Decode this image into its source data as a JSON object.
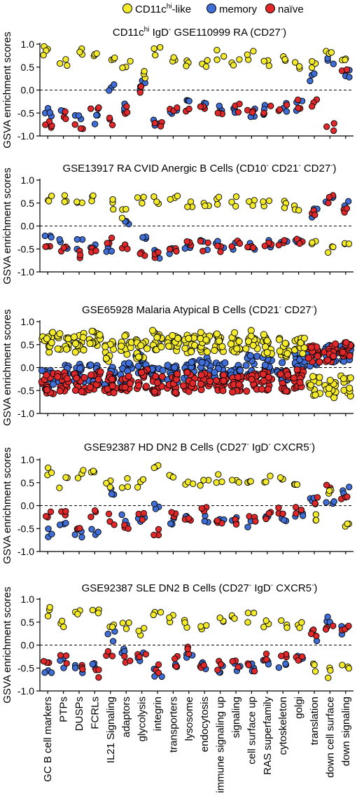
{
  "legend": [
    {
      "label": "CD11c",
      "sup": "hi",
      "tail": "-like",
      "color": "#f2ea2a"
    },
    {
      "label": "memory",
      "sup": "",
      "tail": "",
      "color": "#3f6fd6"
    },
    {
      "label": "naïve",
      "sup": "",
      "tail": "",
      "color": "#e0282a"
    }
  ],
  "categories": [
    "GC B cell markers",
    "PTPs",
    "DUSPs",
    "FCRLs",
    "IL21 Signaling",
    "adaptors",
    "glycolysis",
    "integrin",
    "transporters",
    "lysosome",
    "endocytosis",
    "immune signaling up",
    "signaling",
    "cell surface up",
    "RAS superfamily",
    "cytoskeleton",
    "golgi",
    "translation",
    "down cell surface",
    "down signaling"
  ],
  "ylabel": "GSVA enrichment scores",
  "yticks": [
    "1.0",
    "0.5",
    "0.0",
    "-0.5",
    "-1.0"
  ],
  "chart_data": [
    {
      "type": "scatter",
      "title_parts": [
        {
          "t": "CD11c"
        },
        {
          "t": "hi",
          "sup": true
        },
        {
          "t": " IgD"
        },
        {
          "t": "-",
          "sup": true
        },
        {
          "t": " GSE110999 RA (CD27"
        },
        {
          "t": "-",
          "sup": true
        },
        {
          "t": ")"
        }
      ],
      "ylim": [
        -1.0,
        1.0
      ],
      "n": [
        4,
        3,
        3,
        3,
        3,
        3,
        3,
        3,
        3,
        3,
        3,
        3,
        3,
        3,
        3,
        3,
        3,
        3,
        3,
        3
      ],
      "cd11c": [
        0.88,
        0.6,
        0.79,
        0.78,
        0.62,
        0.52,
        0.3,
        0.83,
        0.62,
        0.55,
        0.55,
        0.78,
        0.62,
        0.74,
        0.57,
        0.62,
        0.58,
        0.55,
        0.75,
        0.58
      ],
      "memory": [
        -0.45,
        -0.52,
        -0.6,
        -0.65,
        0.02,
        -0.38,
        0.1,
        -0.75,
        -0.48,
        -0.2,
        -0.38,
        -0.45,
        -0.45,
        -0.48,
        -0.45,
        -0.38,
        -0.33,
        0.3,
        0.6,
        0.4
      ],
      "naive": [
        -0.7,
        -0.52,
        -0.75,
        -0.5,
        -0.7,
        -0.45,
        0.02,
        -0.82,
        -0.45,
        -0.45,
        -0.42,
        -0.45,
        -0.38,
        -0.55,
        -0.4,
        -0.35,
        -0.33,
        -0.25,
        -0.8,
        0.5
      ]
    },
    {
      "type": "scatter",
      "title_parts": [
        {
          "t": "GSE13917 RA CVID Anergic B Cells (CD10"
        },
        {
          "t": "-",
          "sup": true
        },
        {
          "t": " CD21"
        },
        {
          "t": "-",
          "sup": true
        },
        {
          "t": " CD27"
        },
        {
          "t": "-",
          "sup": true
        },
        {
          "t": ")"
        }
      ],
      "ylim": [
        -1.0,
        1.0
      ],
      "n": [
        3,
        3,
        3,
        3,
        3,
        3,
        3,
        3,
        3,
        3,
        3,
        3,
        3,
        3,
        3,
        3,
        3,
        3,
        3,
        3
      ],
      "cd11c": [
        0.56,
        0.55,
        0.62,
        0.6,
        0.48,
        0.25,
        0.55,
        0.58,
        0.55,
        0.5,
        0.45,
        0.55,
        0.52,
        0.55,
        0.45,
        0.45,
        0.45,
        -0.3,
        -0.5,
        -0.4
      ],
      "memory": [
        -0.3,
        -0.4,
        -0.4,
        -0.4,
        -0.45,
        0.05,
        -0.3,
        -0.6,
        -0.5,
        -0.4,
        -0.4,
        -0.45,
        -0.4,
        -0.45,
        -0.4,
        -0.4,
        -0.4,
        0.3,
        0.6,
        0.45
      ],
      "naive": [
        -0.45,
        -0.5,
        -0.65,
        -0.5,
        -0.35,
        -0.4,
        -0.55,
        -0.6,
        -0.55,
        -0.45,
        -0.45,
        -0.5,
        -0.4,
        -0.5,
        -0.45,
        -0.4,
        -0.4,
        0.35,
        0.6,
        0.4
      ]
    },
    {
      "type": "scatter",
      "title_parts": [
        {
          "t": "GSE65928 Malaria Atypical B Cells (CD21"
        },
        {
          "t": "-",
          "sup": true
        },
        {
          "t": " CD27"
        },
        {
          "t": "-",
          "sup": true
        },
        {
          "t": ")"
        }
      ],
      "ylim": [
        -1.0,
        1.0
      ],
      "n": [
        14,
        14,
        14,
        14,
        14,
        14,
        14,
        14,
        14,
        14,
        14,
        14,
        14,
        14,
        14,
        14,
        14,
        14,
        14,
        14
      ],
      "cd11c": [
        0.55,
        0.55,
        0.55,
        0.62,
        0.35,
        0.5,
        0.4,
        0.6,
        0.5,
        0.5,
        0.55,
        0.55,
        0.55,
        0.6,
        0.5,
        0.45,
        0.45,
        -0.4,
        -0.45,
        -0.4
      ],
      "memory": [
        -0.25,
        -0.15,
        -0.1,
        -0.15,
        -0.2,
        -0.1,
        0.1,
        -0.2,
        -0.15,
        -0.05,
        0.05,
        -0.1,
        -0.15,
        0.05,
        0.05,
        -0.1,
        0.1,
        0.25,
        0.3,
        0.3
      ],
      "naive": [
        -0.35,
        -0.3,
        -0.35,
        -0.3,
        -0.35,
        -0.3,
        -0.25,
        -0.4,
        -0.35,
        -0.3,
        -0.3,
        -0.35,
        -0.35,
        -0.35,
        -0.3,
        -0.3,
        -0.25,
        0.3,
        0.35,
        0.35
      ]
    },
    {
      "type": "scatter",
      "title_parts": [
        {
          "t": "GSE92387 HD DN2 B Cells (CD27"
        },
        {
          "t": "-",
          "sup": true
        },
        {
          "t": " IgD"
        },
        {
          "t": "-",
          "sup": true
        },
        {
          "t": " CXCR5"
        },
        {
          "t": "-",
          "sup": true
        },
        {
          "t": ")"
        }
      ],
      "ylim": [
        -1.0,
        1.0
      ],
      "n": [
        3,
        3,
        3,
        3,
        3,
        3,
        3,
        3,
        3,
        3,
        3,
        3,
        3,
        3,
        3,
        3,
        3,
        3,
        3,
        3
      ],
      "cd11c": [
        0.75,
        0.5,
        0.7,
        0.65,
        0.5,
        0.5,
        0.5,
        0.8,
        0.55,
        0.45,
        0.45,
        0.6,
        0.5,
        0.6,
        0.55,
        0.5,
        0.45,
        -0.3,
        0.3,
        -0.4
      ],
      "memory": [
        -0.6,
        -0.5,
        -0.65,
        -0.55,
        0.3,
        -0.3,
        -0.3,
        0.05,
        -0.4,
        -0.3,
        -0.25,
        -0.3,
        -0.3,
        -0.35,
        -0.3,
        -0.3,
        -0.2,
        0.2,
        0.1,
        0.35
      ],
      "naive": [
        -0.15,
        -0.1,
        -0.4,
        -0.2,
        -0.3,
        -0.4,
        -0.2,
        -0.55,
        -0.25,
        -0.35,
        -0.1,
        -0.4,
        -0.3,
        -0.3,
        -0.25,
        -0.15,
        -0.15,
        0.1,
        0.35,
        0.1
      ]
    },
    {
      "type": "scatter",
      "title_parts": [
        {
          "t": "GSE92387 SLE DN2 B Cells (CD27"
        },
        {
          "t": "-",
          "sup": true
        },
        {
          "t": " IgD"
        },
        {
          "t": "-",
          "sup": true
        },
        {
          "t": " CXCR5"
        },
        {
          "t": "-",
          "sup": true
        },
        {
          "t": ")"
        }
      ],
      "ylim": [
        -1.0,
        1.0
      ],
      "n": [
        3,
        3,
        3,
        3,
        3,
        3,
        3,
        3,
        3,
        3,
        3,
        3,
        3,
        3,
        3,
        3,
        3,
        3,
        3,
        3
      ],
      "cd11c": [
        0.72,
        0.45,
        0.7,
        0.75,
        0.45,
        0.42,
        0.25,
        0.72,
        0.6,
        0.45,
        0.45,
        0.6,
        0.55,
        0.6,
        0.5,
        0.45,
        0.4,
        -0.5,
        -0.6,
        -0.5
      ],
      "memory": [
        -0.55,
        -0.4,
        -0.55,
        -0.45,
        0.2,
        -0.2,
        -0.25,
        -0.6,
        -0.4,
        -0.2,
        -0.45,
        -0.5,
        -0.45,
        -0.45,
        -0.35,
        -0.4,
        -0.35,
        0.2,
        0.5,
        0.35
      ],
      "naive": [
        -0.3,
        -0.3,
        -0.45,
        -0.65,
        -0.2,
        -0.3,
        -0.2,
        -0.5,
        -0.35,
        -0.1,
        -0.4,
        -0.45,
        -0.4,
        -0.45,
        -0.3,
        -0.3,
        -0.3,
        0.25,
        0.4,
        0.35
      ]
    }
  ]
}
